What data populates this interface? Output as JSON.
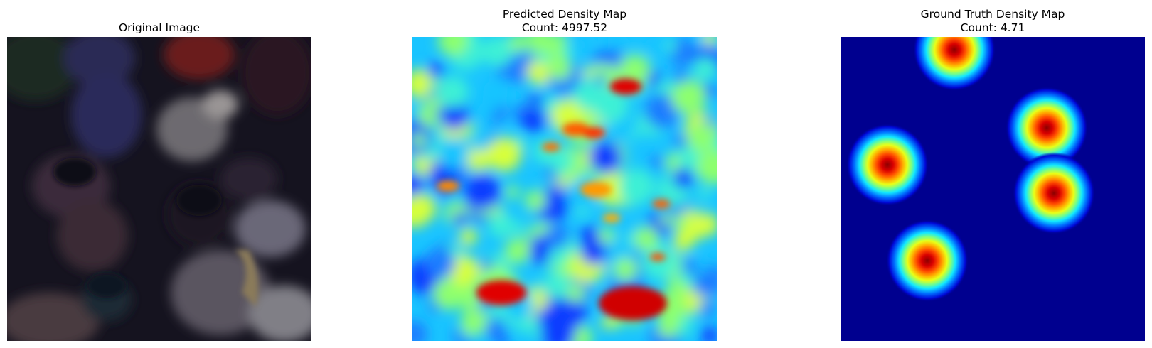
{
  "panels": [
    {
      "title": "Original Image"
    },
    {
      "title": "Predicted Density Map",
      "subtitle": "Count: 4997.52"
    },
    {
      "title": "Ground Truth Density Map",
      "subtitle": "Count: 4.71"
    }
  ],
  "colormap": "jet",
  "colors": {
    "background": "#ffffff",
    "jet_low": "#00007f",
    "jet_mid": "#7fff7f",
    "jet_high": "#7f0000",
    "photo_dark": "#14121f"
  }
}
